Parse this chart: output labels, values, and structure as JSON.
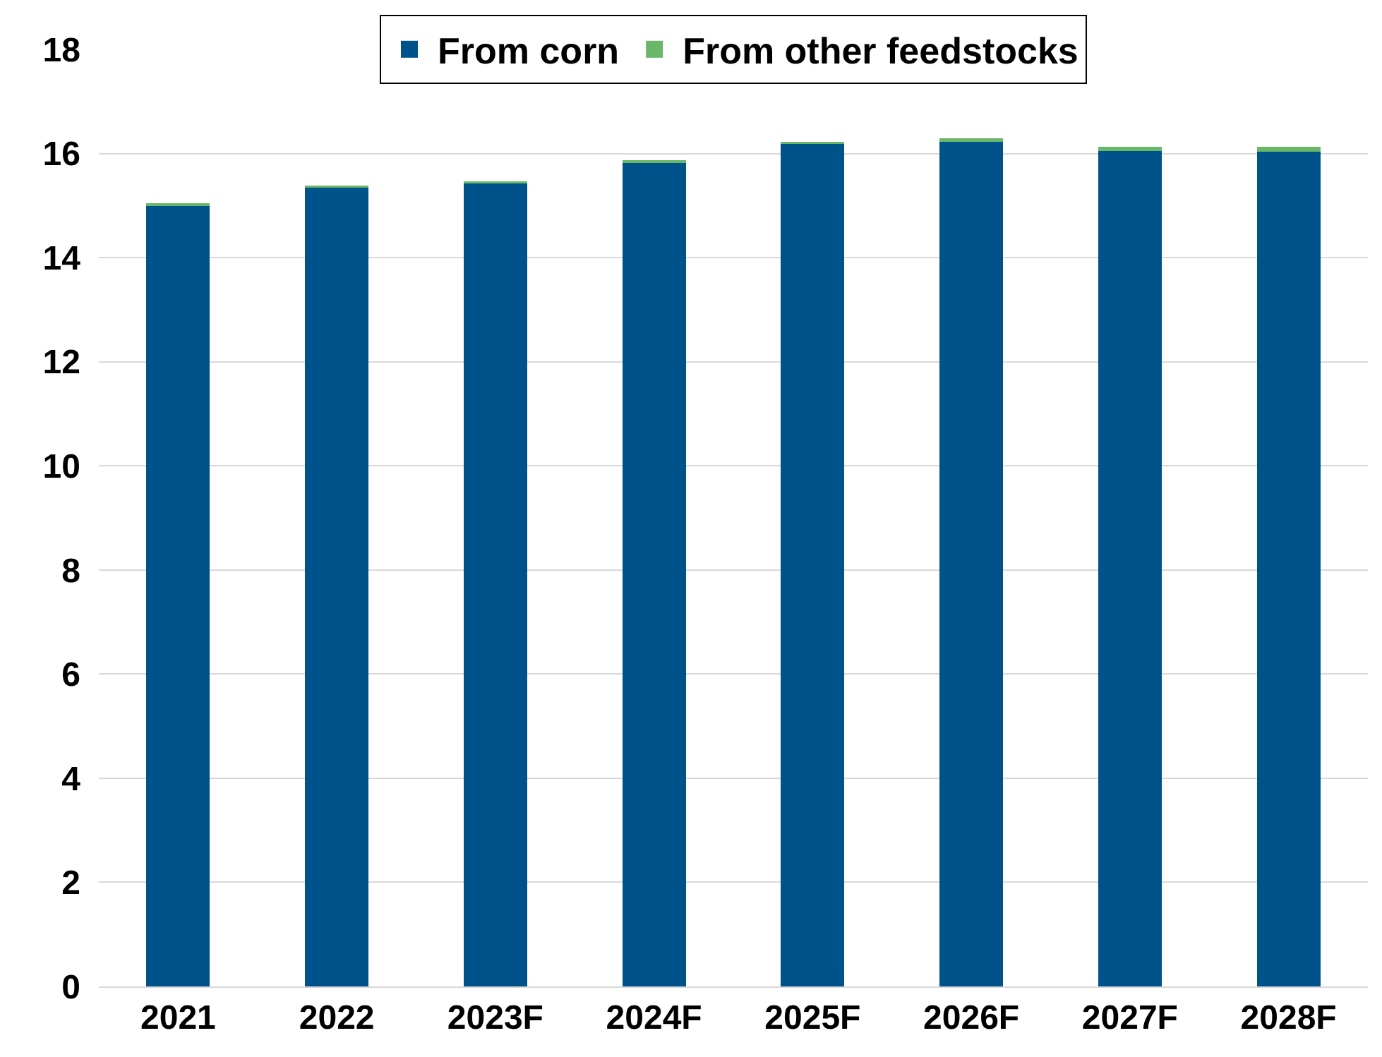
{
  "chart_data": {
    "type": "bar",
    "stacked": true,
    "categories": [
      "2021",
      "2022",
      "2023F",
      "2024F",
      "2025F",
      "2026F",
      "2027F",
      "2028F"
    ],
    "series": [
      {
        "name": "From corn",
        "color": "#00538a",
        "values": [
          14.99,
          15.35,
          15.42,
          15.82,
          16.19,
          16.22,
          16.05,
          16.03
        ]
      },
      {
        "name": "From other feedstocks",
        "color": "#6ab76a",
        "values": [
          0.05,
          0.04,
          0.04,
          0.05,
          0.04,
          0.07,
          0.08,
          0.1
        ]
      }
    ],
    "ylim": [
      0,
      18
    ],
    "yticks": [
      0,
      2,
      4,
      6,
      8,
      10,
      12,
      14,
      16,
      18
    ],
    "grid": "y",
    "legend": "top"
  }
}
